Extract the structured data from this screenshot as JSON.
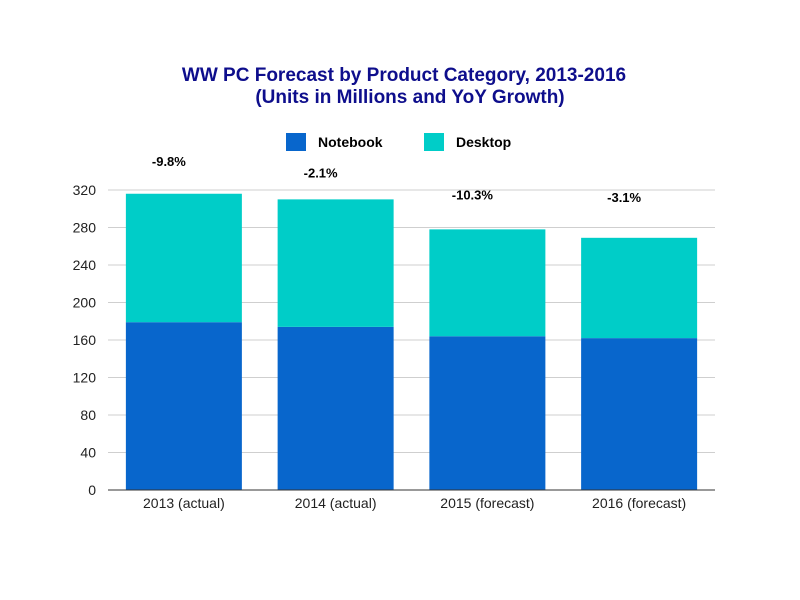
{
  "chart_data": {
    "type": "bar",
    "stacked": true,
    "title_line1": "WW PC Forecast by Product Category, 2013-2016",
    "title_line2": "(Units in Millions and YoY Growth)",
    "categories": [
      "2013 (actual)",
      "2014 (actual)",
      "2015 (forecast)",
      "2016 (forecast)"
    ],
    "series": [
      {
        "name": "Notebook",
        "color": "#0866cc",
        "values": [
          179,
          174,
          164,
          162
        ]
      },
      {
        "name": "Desktop",
        "color": "#00cdc8",
        "values": [
          137,
          136,
          114,
          107
        ]
      }
    ],
    "annotations": [
      "-9.8%",
      "-2.1%",
      "-10.3%",
      "-3.1%"
    ],
    "yticks": [
      "0",
      "40",
      "80",
      "120",
      "160",
      "200",
      "240",
      "280",
      "320"
    ],
    "ylim": [
      0,
      320
    ],
    "grid": true,
    "legend": "top-center",
    "xlabel": "",
    "ylabel": ""
  }
}
